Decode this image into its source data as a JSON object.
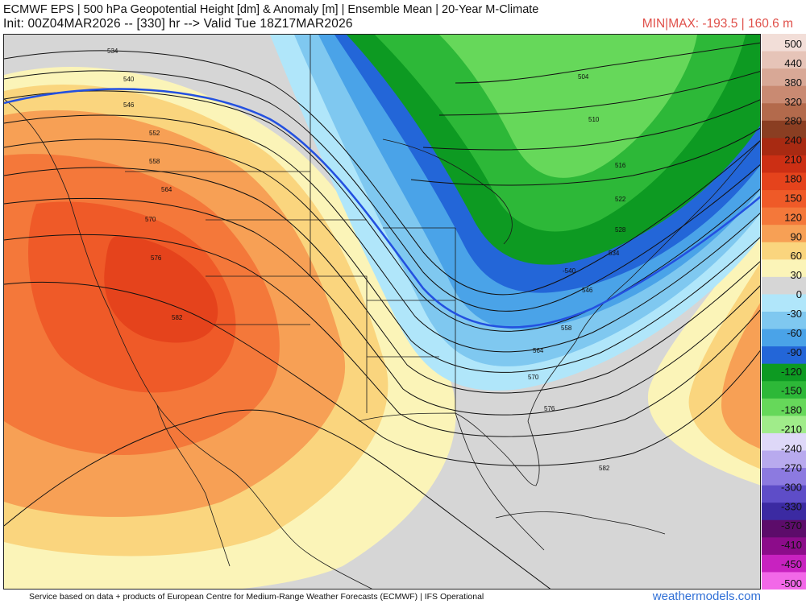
{
  "header": {
    "title": "ECMWF EPS | 500 hPa Geopotential Height [dm] & Anomaly [m] | Ensemble Mean | 20-Year M-Climate",
    "subtitle": "Init: 00Z04MAR2026 -- [330] hr --> Valid Tue 18Z17MAR2026",
    "minmax": "MIN|MAX: -193.5 | 160.6 m"
  },
  "contour_labels": [
    "534",
    "540",
    "546",
    "552",
    "558",
    "564",
    "570",
    "576",
    "582",
    "504",
    "510",
    "516",
    "522",
    "528",
    "534",
    "-540",
    "546",
    "558",
    "564",
    "570",
    "576",
    "582"
  ],
  "colorbar": {
    "labels": [
      "500",
      "440",
      "380",
      "320",
      "280",
      "240",
      "210",
      "180",
      "150",
      "120",
      "90",
      "60",
      "30",
      "0",
      "-30",
      "-60",
      "-90",
      "-120",
      "-150",
      "-180",
      "-210",
      "-240",
      "-270",
      "-300",
      "-330",
      "-370",
      "-410",
      "-450",
      "-500"
    ],
    "colors": [
      "#f2ded8",
      "#e6c4b8",
      "#d8a896",
      "#c98a72",
      "#b36a4c",
      "#8a3e22",
      "#a82a12",
      "#cc2f14",
      "#e5431c",
      "#ef5a28",
      "#f4783a",
      "#f7a055",
      "#fad57e",
      "#fbf4b8",
      "#d6d6d6",
      "#b0e6fa",
      "#7fc8f0",
      "#4aa3e8",
      "#2366d8",
      "#0d9a22",
      "#2db838",
      "#66d85a",
      "#a0ec8a",
      "#ded8f8",
      "#b8aaee",
      "#8c7ae0",
      "#5e4dc8",
      "#3b2aa2",
      "#5c0c6a",
      "#8c0c8a",
      "#c822c0",
      "#f268e8"
    ]
  },
  "footer": {
    "credit": "Service based on data + products of European Centre for Medium-Range Weather Forecasts (ECMWF) | IFS Operational",
    "brand": "weathermodels.com"
  }
}
